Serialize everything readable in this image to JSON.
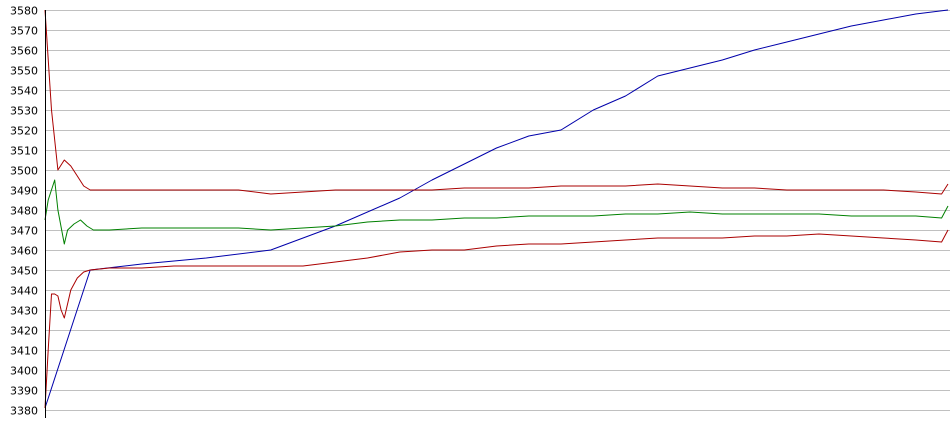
{
  "chart_data": {
    "type": "line",
    "title": "",
    "xlabel": "",
    "ylabel": "",
    "ylim": [
      3380,
      3580
    ],
    "xlim": [
      0,
      280
    ],
    "yticks": [
      3380,
      3390,
      3400,
      3410,
      3420,
      3430,
      3440,
      3450,
      3460,
      3470,
      3480,
      3490,
      3500,
      3510,
      3520,
      3530,
      3540,
      3550,
      3560,
      3570,
      3580
    ],
    "grid": true,
    "legend": "none",
    "series": [
      {
        "color": "#0000aa",
        "x": [
          0,
          14,
          30,
          50,
          70,
          90,
          110,
          120,
          130,
          140,
          150,
          160,
          170,
          180,
          190,
          200,
          210,
          220,
          230,
          240,
          250,
          260,
          270,
          280
        ],
        "values": [
          3381,
          3450,
          3453,
          3456,
          3460,
          3472,
          3486,
          3495,
          3503,
          3511,
          3517,
          3520,
          3530,
          3537,
          3547,
          3551,
          3555,
          3560,
          3564,
          3568,
          3572,
          3575,
          3578,
          3580
        ]
      },
      {
        "color": "#aa0000",
        "x": [
          0,
          2,
          4,
          6,
          8,
          10,
          12,
          14,
          20,
          30,
          40,
          50,
          60,
          70,
          80,
          90,
          100,
          110,
          120,
          130,
          140,
          150,
          160,
          170,
          180,
          190,
          200,
          210,
          220,
          230,
          240,
          250,
          260,
          270,
          278,
          280
        ],
        "values": [
          3580,
          3530,
          3500,
          3505,
          3502,
          3497,
          3492,
          3490,
          3490,
          3490,
          3490,
          3490,
          3490,
          3488,
          3489,
          3490,
          3490,
          3490,
          3490,
          3491,
          3491,
          3491,
          3492,
          3492,
          3492,
          3493,
          3492,
          3491,
          3491,
          3490,
          3490,
          3490,
          3490,
          3489,
          3488,
          3493
        ]
      },
      {
        "color": "#008000",
        "x": [
          0,
          1,
          3,
          4,
          6,
          7,
          9,
          11,
          13,
          15,
          20,
          30,
          40,
          50,
          60,
          70,
          80,
          90,
          100,
          110,
          120,
          130,
          140,
          150,
          160,
          170,
          180,
          190,
          200,
          210,
          220,
          230,
          240,
          250,
          260,
          270,
          278,
          280
        ],
        "values": [
          3475,
          3485,
          3495,
          3480,
          3463,
          3470,
          3473,
          3475,
          3472,
          3470,
          3470,
          3471,
          3471,
          3471,
          3471,
          3470,
          3471,
          3472,
          3474,
          3475,
          3475,
          3476,
          3476,
          3477,
          3477,
          3477,
          3478,
          3478,
          3479,
          3478,
          3478,
          3478,
          3478,
          3477,
          3477,
          3477,
          3476,
          3482
        ]
      },
      {
        "color": "#aa0000",
        "x": [
          0,
          1,
          2,
          3,
          4,
          5,
          6,
          8,
          10,
          12,
          14,
          20,
          30,
          40,
          50,
          60,
          70,
          80,
          90,
          100,
          110,
          120,
          130,
          140,
          150,
          160,
          170,
          180,
          190,
          200,
          210,
          220,
          230,
          240,
          250,
          260,
          270,
          278,
          280
        ],
        "values": [
          3381,
          3410,
          3438,
          3438,
          3437,
          3430,
          3426,
          3440,
          3446,
          3449,
          3450,
          3451,
          3451,
          3452,
          3452,
          3452,
          3452,
          3452,
          3454,
          3456,
          3459,
          3460,
          3460,
          3462,
          3463,
          3463,
          3464,
          3465,
          3466,
          3466,
          3466,
          3467,
          3467,
          3468,
          3467,
          3466,
          3465,
          3464,
          3470
        ]
      }
    ]
  }
}
